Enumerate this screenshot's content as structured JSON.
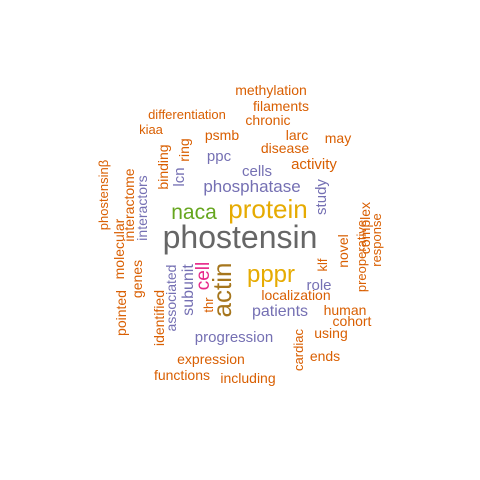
{
  "colors": {
    "orange": "#d95f02",
    "purple": "#7570b3",
    "pink": "#e7298a",
    "green": "#66a61e",
    "gold": "#e6ab02",
    "brown": "#a6761d",
    "gray": "#666666"
  },
  "words": [
    {
      "text": "phostensin",
      "color": "#666666"
    },
    {
      "text": "protein",
      "color": "#e6ab02"
    },
    {
      "text": "naca",
      "color": "#66a61e"
    },
    {
      "text": "actin",
      "color": "#a6761d"
    },
    {
      "text": "pppr",
      "color": "#e6ab02"
    },
    {
      "text": "cell",
      "color": "#e7298a"
    },
    {
      "text": "phosphatase",
      "color": "#7570b3"
    },
    {
      "text": "patients",
      "color": "#7570b3"
    },
    {
      "text": "progression",
      "color": "#7570b3"
    },
    {
      "text": "cells",
      "color": "#7570b3"
    },
    {
      "text": "subunit",
      "color": "#7570b3"
    },
    {
      "text": "associated",
      "color": "#7570b3"
    },
    {
      "text": "study",
      "color": "#7570b3"
    },
    {
      "text": "interactors",
      "color": "#7570b3"
    },
    {
      "text": "ppc",
      "color": "#7570b3"
    },
    {
      "text": "lcn",
      "color": "#7570b3"
    },
    {
      "text": "role",
      "color": "#7570b3"
    },
    {
      "text": "methylation",
      "color": "#d95f02"
    },
    {
      "text": "filaments",
      "color": "#d95f02"
    },
    {
      "text": "chronic",
      "color": "#d95f02"
    },
    {
      "text": "differentiation",
      "color": "#d95f02"
    },
    {
      "text": "kiaa",
      "color": "#d95f02"
    },
    {
      "text": "psmb",
      "color": "#d95f02"
    },
    {
      "text": "larc",
      "color": "#d95f02"
    },
    {
      "text": "may",
      "color": "#d95f02"
    },
    {
      "text": "ring",
      "color": "#d95f02"
    },
    {
      "text": "disease",
      "color": "#d95f02"
    },
    {
      "text": "activity",
      "color": "#d95f02"
    },
    {
      "text": "binding",
      "color": "#d95f02"
    },
    {
      "text": "complex",
      "color": "#d95f02"
    },
    {
      "text": "novel",
      "color": "#d95f02"
    },
    {
      "text": "preoperative",
      "color": "#d95f02"
    },
    {
      "text": "response",
      "color": "#d95f02"
    },
    {
      "text": "interactome",
      "color": "#d95f02"
    },
    {
      "text": "phostensinβ",
      "color": "#d95f02"
    },
    {
      "text": "molecular",
      "color": "#d95f02"
    },
    {
      "text": "genes",
      "color": "#d95f02"
    },
    {
      "text": "pointed",
      "color": "#d95f02"
    },
    {
      "text": "identified",
      "color": "#d95f02"
    },
    {
      "text": "thr",
      "color": "#d95f02"
    },
    {
      "text": "klf",
      "color": "#d95f02"
    },
    {
      "text": "localization",
      "color": "#d95f02"
    },
    {
      "text": "human",
      "color": "#d95f02"
    },
    {
      "text": "cohort",
      "color": "#d95f02"
    },
    {
      "text": "using",
      "color": "#d95f02"
    },
    {
      "text": "cardiac",
      "color": "#d95f02"
    },
    {
      "text": "ends",
      "color": "#d95f02"
    },
    {
      "text": "expression",
      "color": "#d95f02"
    },
    {
      "text": "functions",
      "color": "#d95f02"
    },
    {
      "text": "including",
      "color": "#d95f02"
    }
  ]
}
